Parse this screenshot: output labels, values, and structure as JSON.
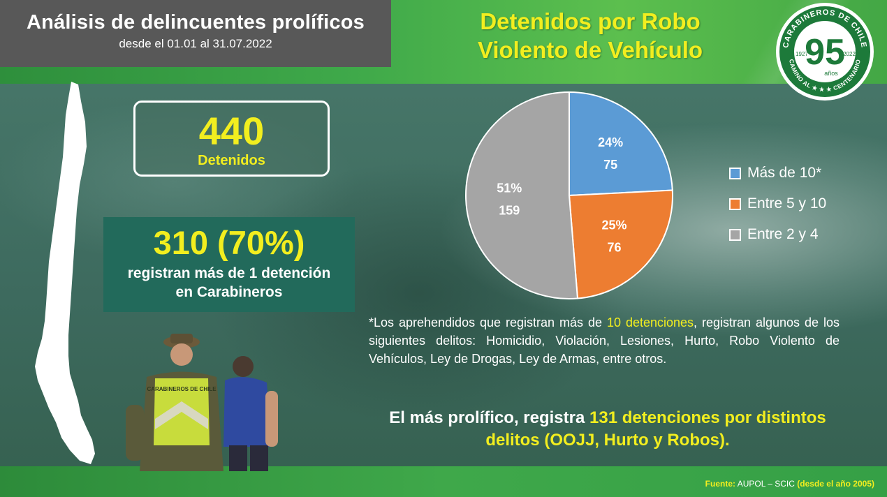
{
  "header": {
    "title": "Análisis de delincuentes prolíficos",
    "subtitle": "desde el 01.01 al 31.07.2022"
  },
  "main_title": {
    "line1": "Detenidos por Robo",
    "line2": "Violento de Vehículo"
  },
  "logo": {
    "top_text": "CARABINEROS DE CHILE",
    "number": "95",
    "sub": "años",
    "year_left": "1927",
    "year_right": "2022",
    "bottom_text": "CAMINO AL ★ ★ ★ CENTENARIO",
    "color": "#1d7a3a"
  },
  "stats": {
    "total_value": "440",
    "total_label": "Detenidos",
    "repeat_value": "310 (70%)",
    "repeat_label_line1": "registran más de 1 detención",
    "repeat_label_line2": "en Carabineros"
  },
  "figures": {
    "vest_text": "CARABINEROS DE CHILE"
  },
  "chart_data": {
    "type": "pie",
    "slices": [
      {
        "label": "Más de 10*",
        "value": 75,
        "percent": "24%",
        "color": "#5b9bd5"
      },
      {
        "label": "Entre 5 y 10",
        "value": 76,
        "percent": "25%",
        "color": "#ed7d31"
      },
      {
        "label": "Entre 2 y 4",
        "value": 159,
        "percent": "51%",
        "color": "#a5a5a5"
      }
    ],
    "legend_position": "right"
  },
  "note": {
    "prefix": "*Los aprehendidos que registran más de ",
    "highlight": "10 detenciones",
    "suffix": ", registran algunos de los siguientes delitos: Homicidio, Violación, Lesiones, Hurto, Robo Violento de Vehículos, Ley de Drogas, Ley de Armas, entre otros."
  },
  "prolific": {
    "prefix": "El más prolífico, registra ",
    "highlight": "131 detenciones por distintos delitos (OOJJ, Hurto y Robos)."
  },
  "source": {
    "label": "Fuente:",
    "org": " AUPOL – SCIC ",
    "note": "(desde el año 2005)"
  }
}
